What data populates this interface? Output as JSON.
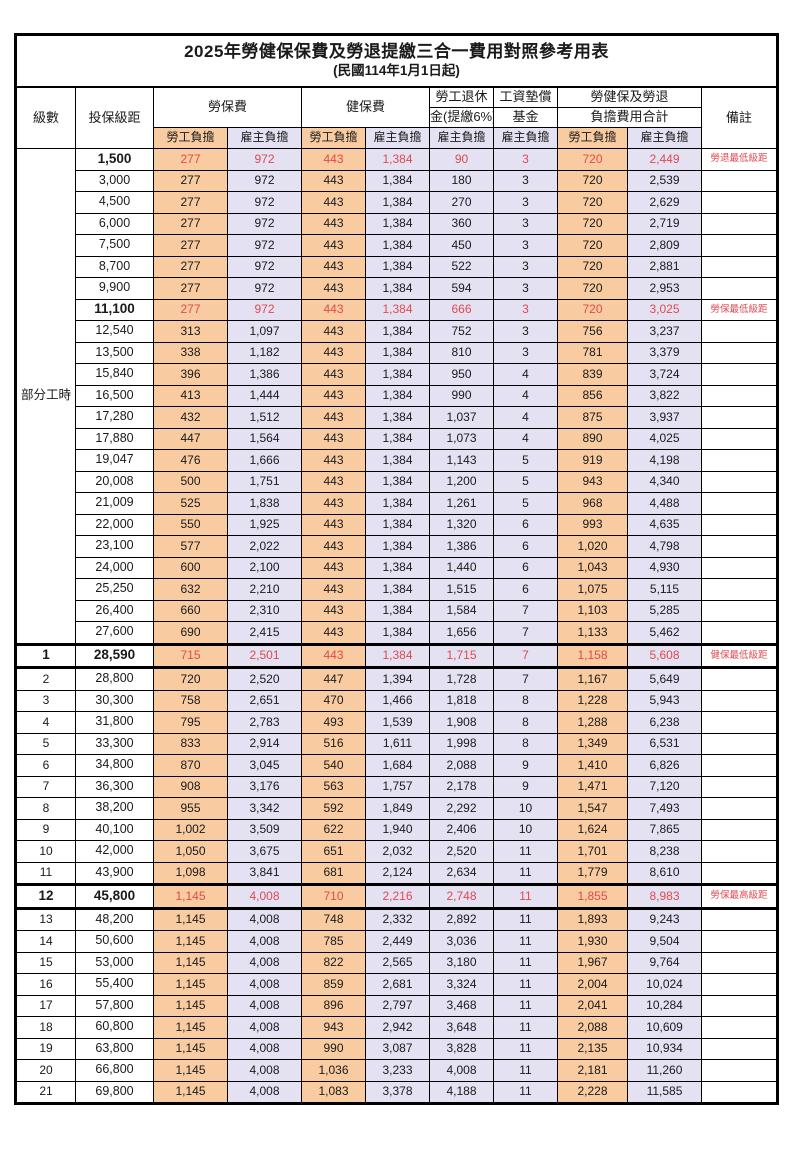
{
  "title": "2025年勞健保保費及勞退提繳三合一費用對照參考用表",
  "subtitle": "(民國114年1月1日起)",
  "colors": {
    "employee_col_bg": "#f8cba0",
    "employer_col_bg": "#e3e1f2",
    "highlight_value_red": "#e04a50",
    "remark_red": "#f04c4c",
    "border": "#000000",
    "background": "#ffffff"
  },
  "header": {
    "level": "級數",
    "bracket": "投保級距",
    "labor_ins": "勞保費",
    "health_ins": "健保費",
    "pension_line1": "勞工退休",
    "pension_line2": "金(提繳6%)",
    "wage_fund_line1": "工資墊償",
    "wage_fund_line2": "基金",
    "total_line1": "勞健保及勞退",
    "total_line2": "負擔費用合計",
    "remark": "備註",
    "employee_share": "勞工負擔",
    "employer_share": "雇主負擔"
  },
  "table": {
    "part_time_label": "部分工時",
    "part_time_rowspan": 23,
    "value_col_classes": [
      "emp",
      "er",
      "emp",
      "er",
      "er",
      "er",
      "emp",
      "er"
    ],
    "rows": [
      {
        "level": "",
        "bracket": "1,500",
        "v": [
          "277",
          "972",
          "443",
          "1,384",
          "90",
          "3",
          "720",
          "2,449"
        ],
        "remark": "勞退最低級距",
        "hl": true,
        "sec": false
      },
      {
        "level": "",
        "bracket": "3,000",
        "v": [
          "277",
          "972",
          "443",
          "1,384",
          "180",
          "3",
          "720",
          "2,539"
        ],
        "remark": "",
        "hl": false,
        "sec": false
      },
      {
        "level": "",
        "bracket": "4,500",
        "v": [
          "277",
          "972",
          "443",
          "1,384",
          "270",
          "3",
          "720",
          "2,629"
        ],
        "remark": "",
        "hl": false,
        "sec": false
      },
      {
        "level": "",
        "bracket": "6,000",
        "v": [
          "277",
          "972",
          "443",
          "1,384",
          "360",
          "3",
          "720",
          "2,719"
        ],
        "remark": "",
        "hl": false,
        "sec": false
      },
      {
        "level": "",
        "bracket": "7,500",
        "v": [
          "277",
          "972",
          "443",
          "1,384",
          "450",
          "3",
          "720",
          "2,809"
        ],
        "remark": "",
        "hl": false,
        "sec": false
      },
      {
        "level": "",
        "bracket": "8,700",
        "v": [
          "277",
          "972",
          "443",
          "1,384",
          "522",
          "3",
          "720",
          "2,881"
        ],
        "remark": "",
        "hl": false,
        "sec": false
      },
      {
        "level": "",
        "bracket": "9,900",
        "v": [
          "277",
          "972",
          "443",
          "1,384",
          "594",
          "3",
          "720",
          "2,953"
        ],
        "remark": "",
        "hl": false,
        "sec": false
      },
      {
        "level": "",
        "bracket": "11,100",
        "v": [
          "277",
          "972",
          "443",
          "1,384",
          "666",
          "3",
          "720",
          "3,025"
        ],
        "remark": "勞保最低級距",
        "hl": true,
        "sec": false
      },
      {
        "level": "",
        "bracket": "12,540",
        "v": [
          "313",
          "1,097",
          "443",
          "1,384",
          "752",
          "3",
          "756",
          "3,237"
        ],
        "remark": "",
        "hl": false,
        "sec": false
      },
      {
        "level": "",
        "bracket": "13,500",
        "v": [
          "338",
          "1,182",
          "443",
          "1,384",
          "810",
          "3",
          "781",
          "3,379"
        ],
        "remark": "",
        "hl": false,
        "sec": false
      },
      {
        "level": "",
        "bracket": "15,840",
        "v": [
          "396",
          "1,386",
          "443",
          "1,384",
          "950",
          "4",
          "839",
          "3,724"
        ],
        "remark": "",
        "hl": false,
        "sec": false
      },
      {
        "level": "",
        "bracket": "16,500",
        "v": [
          "413",
          "1,444",
          "443",
          "1,384",
          "990",
          "4",
          "856",
          "3,822"
        ],
        "remark": "",
        "hl": false,
        "sec": false
      },
      {
        "level": "",
        "bracket": "17,280",
        "v": [
          "432",
          "1,512",
          "443",
          "1,384",
          "1,037",
          "4",
          "875",
          "3,937"
        ],
        "remark": "",
        "hl": false,
        "sec": false
      },
      {
        "level": "",
        "bracket": "17,880",
        "v": [
          "447",
          "1,564",
          "443",
          "1,384",
          "1,073",
          "4",
          "890",
          "4,025"
        ],
        "remark": "",
        "hl": false,
        "sec": false
      },
      {
        "level": "",
        "bracket": "19,047",
        "v": [
          "476",
          "1,666",
          "443",
          "1,384",
          "1,143",
          "5",
          "919",
          "4,198"
        ],
        "remark": "",
        "hl": false,
        "sec": false
      },
      {
        "level": "",
        "bracket": "20,008",
        "v": [
          "500",
          "1,751",
          "443",
          "1,384",
          "1,200",
          "5",
          "943",
          "4,340"
        ],
        "remark": "",
        "hl": false,
        "sec": false
      },
      {
        "level": "",
        "bracket": "21,009",
        "v": [
          "525",
          "1,838",
          "443",
          "1,384",
          "1,261",
          "5",
          "968",
          "4,488"
        ],
        "remark": "",
        "hl": false,
        "sec": false
      },
      {
        "level": "",
        "bracket": "22,000",
        "v": [
          "550",
          "1,925",
          "443",
          "1,384",
          "1,320",
          "6",
          "993",
          "4,635"
        ],
        "remark": "",
        "hl": false,
        "sec": false
      },
      {
        "level": "",
        "bracket": "23,100",
        "v": [
          "577",
          "2,022",
          "443",
          "1,384",
          "1,386",
          "6",
          "1,020",
          "4,798"
        ],
        "remark": "",
        "hl": false,
        "sec": false
      },
      {
        "level": "",
        "bracket": "24,000",
        "v": [
          "600",
          "2,100",
          "443",
          "1,384",
          "1,440",
          "6",
          "1,043",
          "4,930"
        ],
        "remark": "",
        "hl": false,
        "sec": false
      },
      {
        "level": "",
        "bracket": "25,250",
        "v": [
          "632",
          "2,210",
          "443",
          "1,384",
          "1,515",
          "6",
          "1,075",
          "5,115"
        ],
        "remark": "",
        "hl": false,
        "sec": false
      },
      {
        "level": "",
        "bracket": "26,400",
        "v": [
          "660",
          "2,310",
          "443",
          "1,384",
          "1,584",
          "7",
          "1,103",
          "5,285"
        ],
        "remark": "",
        "hl": false,
        "sec": false
      },
      {
        "level": "",
        "bracket": "27,600",
        "v": [
          "690",
          "2,415",
          "443",
          "1,384",
          "1,656",
          "7",
          "1,133",
          "5,462"
        ],
        "remark": "",
        "hl": false,
        "sec": false
      },
      {
        "level": "1",
        "bracket": "28,590",
        "v": [
          "715",
          "2,501",
          "443",
          "1,384",
          "1,715",
          "7",
          "1,158",
          "5,608"
        ],
        "remark": "健保最低級距",
        "hl": true,
        "sec": true
      },
      {
        "level": "2",
        "bracket": "28,800",
        "v": [
          "720",
          "2,520",
          "447",
          "1,394",
          "1,728",
          "7",
          "1,167",
          "5,649"
        ],
        "remark": "",
        "hl": false,
        "sec": false
      },
      {
        "level": "3",
        "bracket": "30,300",
        "v": [
          "758",
          "2,651",
          "470",
          "1,466",
          "1,818",
          "8",
          "1,228",
          "5,943"
        ],
        "remark": "",
        "hl": false,
        "sec": false
      },
      {
        "level": "4",
        "bracket": "31,800",
        "v": [
          "795",
          "2,783",
          "493",
          "1,539",
          "1,908",
          "8",
          "1,288",
          "6,238"
        ],
        "remark": "",
        "hl": false,
        "sec": false
      },
      {
        "level": "5",
        "bracket": "33,300",
        "v": [
          "833",
          "2,914",
          "516",
          "1,611",
          "1,998",
          "8",
          "1,349",
          "6,531"
        ],
        "remark": "",
        "hl": false,
        "sec": false
      },
      {
        "level": "6",
        "bracket": "34,800",
        "v": [
          "870",
          "3,045",
          "540",
          "1,684",
          "2,088",
          "9",
          "1,410",
          "6,826"
        ],
        "remark": "",
        "hl": false,
        "sec": false
      },
      {
        "level": "7",
        "bracket": "36,300",
        "v": [
          "908",
          "3,176",
          "563",
          "1,757",
          "2,178",
          "9",
          "1,471",
          "7,120"
        ],
        "remark": "",
        "hl": false,
        "sec": false
      },
      {
        "level": "8",
        "bracket": "38,200",
        "v": [
          "955",
          "3,342",
          "592",
          "1,849",
          "2,292",
          "10",
          "1,547",
          "7,493"
        ],
        "remark": "",
        "hl": false,
        "sec": false
      },
      {
        "level": "9",
        "bracket": "40,100",
        "v": [
          "1,002",
          "3,509",
          "622",
          "1,940",
          "2,406",
          "10",
          "1,624",
          "7,865"
        ],
        "remark": "",
        "hl": false,
        "sec": false
      },
      {
        "level": "10",
        "bracket": "42,000",
        "v": [
          "1,050",
          "3,675",
          "651",
          "2,032",
          "2,520",
          "11",
          "1,701",
          "8,238"
        ],
        "remark": "",
        "hl": false,
        "sec": false
      },
      {
        "level": "11",
        "bracket": "43,900",
        "v": [
          "1,098",
          "3,841",
          "681",
          "2,124",
          "2,634",
          "11",
          "1,779",
          "8,610"
        ],
        "remark": "",
        "hl": false,
        "sec": false
      },
      {
        "level": "12",
        "bracket": "45,800",
        "v": [
          "1,145",
          "4,008",
          "710",
          "2,216",
          "2,748",
          "11",
          "1,855",
          "8,983"
        ],
        "remark": "勞保最高級距",
        "hl": true,
        "sec": true
      },
      {
        "level": "13",
        "bracket": "48,200",
        "v": [
          "1,145",
          "4,008",
          "748",
          "2,332",
          "2,892",
          "11",
          "1,893",
          "9,243"
        ],
        "remark": "",
        "hl": false,
        "sec": false
      },
      {
        "level": "14",
        "bracket": "50,600",
        "v": [
          "1,145",
          "4,008",
          "785",
          "2,449",
          "3,036",
          "11",
          "1,930",
          "9,504"
        ],
        "remark": "",
        "hl": false,
        "sec": false
      },
      {
        "level": "15",
        "bracket": "53,000",
        "v": [
          "1,145",
          "4,008",
          "822",
          "2,565",
          "3,180",
          "11",
          "1,967",
          "9,764"
        ],
        "remark": "",
        "hl": false,
        "sec": false
      },
      {
        "level": "16",
        "bracket": "55,400",
        "v": [
          "1,145",
          "4,008",
          "859",
          "2,681",
          "3,324",
          "11",
          "2,004",
          "10,024"
        ],
        "remark": "",
        "hl": false,
        "sec": false
      },
      {
        "level": "17",
        "bracket": "57,800",
        "v": [
          "1,145",
          "4,008",
          "896",
          "2,797",
          "3,468",
          "11",
          "2,041",
          "10,284"
        ],
        "remark": "",
        "hl": false,
        "sec": false
      },
      {
        "level": "18",
        "bracket": "60,800",
        "v": [
          "1,145",
          "4,008",
          "943",
          "2,942",
          "3,648",
          "11",
          "2,088",
          "10,609"
        ],
        "remark": "",
        "hl": false,
        "sec": false
      },
      {
        "level": "19",
        "bracket": "63,800",
        "v": [
          "1,145",
          "4,008",
          "990",
          "3,087",
          "3,828",
          "11",
          "2,135",
          "10,934"
        ],
        "remark": "",
        "hl": false,
        "sec": false
      },
      {
        "level": "20",
        "bracket": "66,800",
        "v": [
          "1,145",
          "4,008",
          "1,036",
          "3,233",
          "4,008",
          "11",
          "2,181",
          "11,260"
        ],
        "remark": "",
        "hl": false,
        "sec": false
      },
      {
        "level": "21",
        "bracket": "69,800",
        "v": [
          "1,145",
          "4,008",
          "1,083",
          "3,378",
          "4,188",
          "11",
          "2,228",
          "11,585"
        ],
        "remark": "",
        "hl": false,
        "sec": false
      }
    ]
  }
}
